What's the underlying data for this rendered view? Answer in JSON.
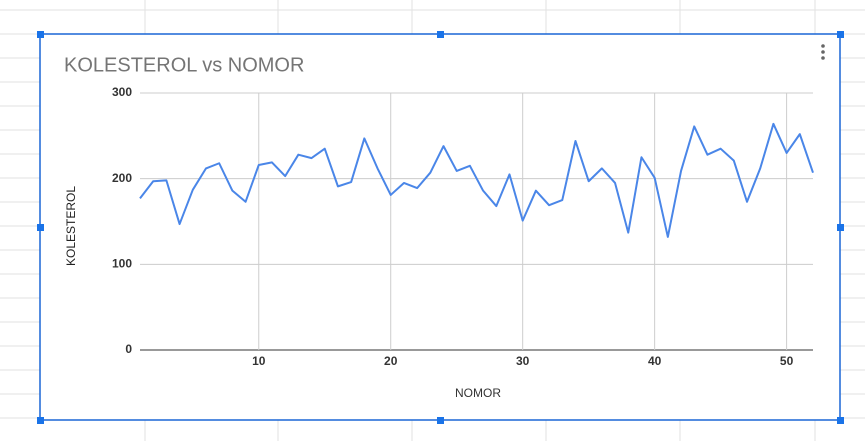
{
  "chart_data": {
    "type": "line",
    "title": "KOLESTEROL vs NOMOR",
    "x_label": "NOMOR",
    "y_label": "KOLESTEROL",
    "x": [
      1,
      2,
      3,
      4,
      5,
      6,
      7,
      8,
      9,
      10,
      11,
      12,
      13,
      14,
      15,
      16,
      17,
      18,
      19,
      20,
      21,
      22,
      23,
      24,
      25,
      26,
      27,
      28,
      29,
      30,
      31,
      32,
      33,
      34,
      35,
      36,
      37,
      38,
      39,
      40,
      41,
      42,
      43,
      44,
      45,
      46,
      47,
      48,
      49,
      50,
      51,
      52
    ],
    "series": [
      {
        "name": "KOLESTEROL",
        "color": "#4a86e8",
        "values": [
          177,
          197,
          198,
          147,
          187,
          212,
          218,
          186,
          173,
          216,
          219,
          203,
          228,
          224,
          235,
          191,
          196,
          247,
          212,
          181,
          195,
          189,
          207,
          238,
          209,
          215,
          186,
          168,
          205,
          151,
          186,
          169,
          175,
          244,
          197,
          212,
          195,
          137,
          225,
          201,
          132,
          209,
          261,
          228,
          235,
          221,
          173,
          212,
          264,
          230,
          252,
          207
        ]
      }
    ],
    "xlim": [
      1,
      52
    ],
    "xticks": [
      10,
      20,
      30,
      40,
      50
    ],
    "ylim": [
      0,
      300
    ],
    "yticks": [
      0,
      100,
      200,
      300
    ],
    "grid": true
  }
}
